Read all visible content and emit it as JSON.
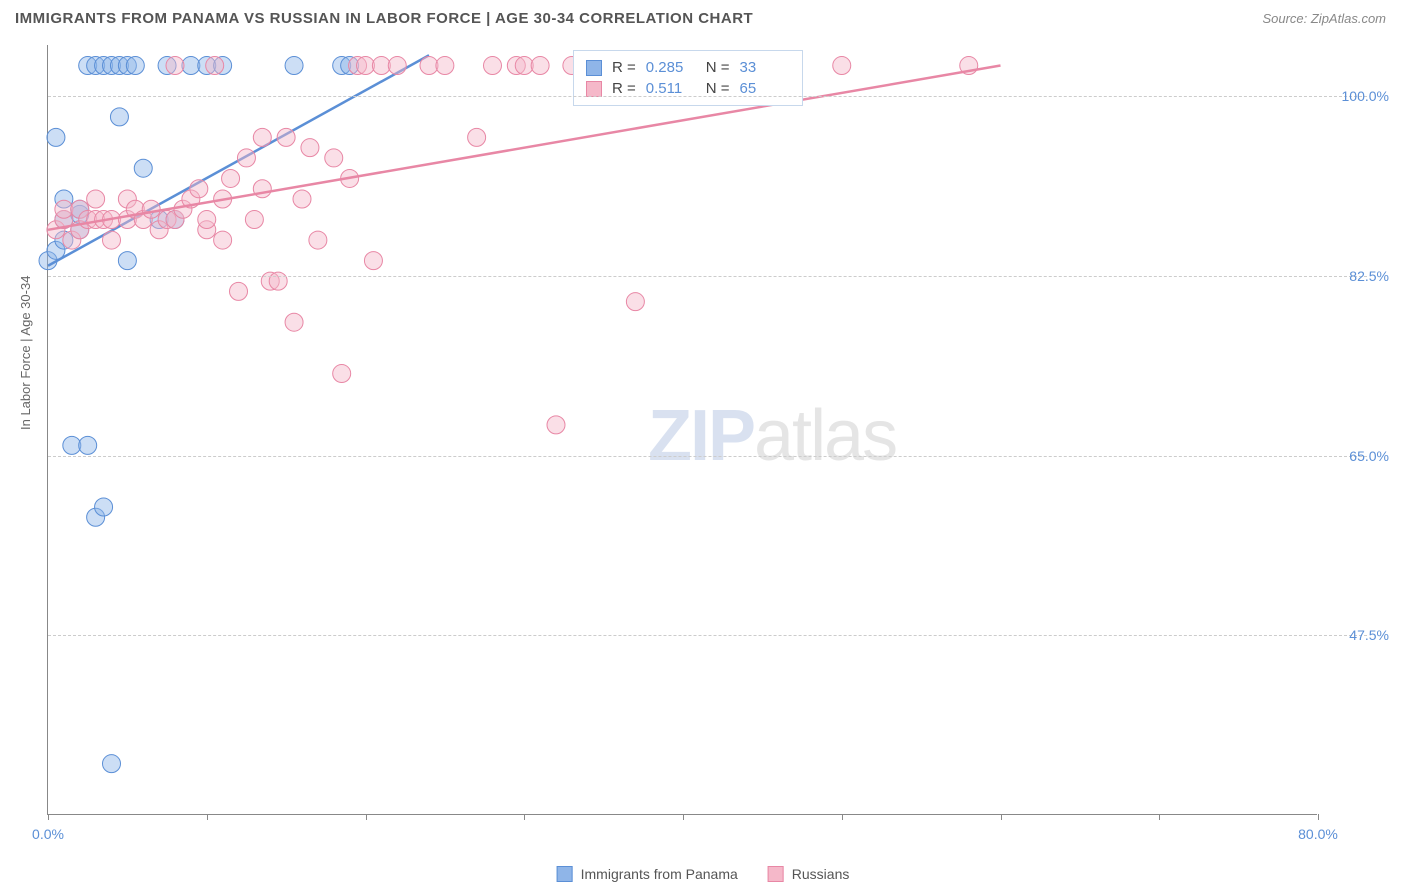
{
  "title": "IMMIGRANTS FROM PANAMA VS RUSSIAN IN LABOR FORCE | AGE 30-34 CORRELATION CHART",
  "source": "Source: ZipAtlas.com",
  "ylabel": "In Labor Force | Age 30-34",
  "watermark": {
    "zip": "ZIP",
    "atlas": "atlas"
  },
  "chart": {
    "type": "scatter",
    "xlim": [
      0,
      80
    ],
    "ylim": [
      30,
      105
    ],
    "xticks": [
      0,
      10,
      20,
      30,
      40,
      50,
      60,
      70,
      80
    ],
    "xtick_labels": {
      "0": "0.0%",
      "80": "80.0%"
    },
    "yticks": [
      47.5,
      65.0,
      82.5,
      100.0
    ],
    "ytick_labels": [
      "47.5%",
      "65.0%",
      "82.5%",
      "100.0%"
    ],
    "grid_color": "#cccccc",
    "axis_color": "#888888",
    "background_color": "#ffffff",
    "marker_radius": 9,
    "marker_opacity": 0.45,
    "line_width": 2.5,
    "series": [
      {
        "name": "Immigrants from Panama",
        "color_fill": "#8fb5e8",
        "color_stroke": "#5b8fd6",
        "R": "0.285",
        "N": "33",
        "trendline": {
          "x1": 0,
          "y1": 83.5,
          "x2": 24,
          "y2": 104
        },
        "points": [
          [
            0,
            84
          ],
          [
            0.5,
            85
          ],
          [
            0.5,
            96
          ],
          [
            1,
            86
          ],
          [
            1,
            88
          ],
          [
            1,
            90
          ],
          [
            1.5,
            66
          ],
          [
            2,
            87
          ],
          [
            2,
            88.5
          ],
          [
            2,
            89
          ],
          [
            2.5,
            66
          ],
          [
            2.5,
            103
          ],
          [
            3,
            59
          ],
          [
            3,
            103
          ],
          [
            3.5,
            60
          ],
          [
            3.5,
            103
          ],
          [
            4,
            103
          ],
          [
            4,
            35
          ],
          [
            4.5,
            98
          ],
          [
            4.5,
            103
          ],
          [
            5,
            84
          ],
          [
            5,
            103
          ],
          [
            5.5,
            103
          ],
          [
            6,
            93
          ],
          [
            7,
            88
          ],
          [
            7.5,
            103
          ],
          [
            8,
            88
          ],
          [
            9,
            103
          ],
          [
            10,
            103
          ],
          [
            11,
            103
          ],
          [
            15.5,
            103
          ],
          [
            18.5,
            103
          ],
          [
            19,
            103
          ]
        ]
      },
      {
        "name": "Russians",
        "color_fill": "#f5b8c9",
        "color_stroke": "#e887a5",
        "R": "0.511",
        "N": "65",
        "trendline": {
          "x1": 0,
          "y1": 87,
          "x2": 60,
          "y2": 103
        },
        "points": [
          [
            0.5,
            87
          ],
          [
            1,
            88
          ],
          [
            1,
            89
          ],
          [
            1.5,
            86
          ],
          [
            2,
            87
          ],
          [
            2,
            89
          ],
          [
            2.5,
            88
          ],
          [
            3,
            88
          ],
          [
            3,
            90
          ],
          [
            3.5,
            88
          ],
          [
            4,
            86
          ],
          [
            4,
            88
          ],
          [
            5,
            88
          ],
          [
            5,
            90
          ],
          [
            5.5,
            89
          ],
          [
            6,
            88
          ],
          [
            6.5,
            89
          ],
          [
            7,
            87
          ],
          [
            7.5,
            88
          ],
          [
            8,
            88
          ],
          [
            8,
            103
          ],
          [
            8.5,
            89
          ],
          [
            9,
            90
          ],
          [
            9.5,
            91
          ],
          [
            10,
            87
          ],
          [
            10,
            88
          ],
          [
            10.5,
            103
          ],
          [
            11,
            90
          ],
          [
            11,
            86
          ],
          [
            11.5,
            92
          ],
          [
            12,
            81
          ],
          [
            12.5,
            94
          ],
          [
            13,
            88
          ],
          [
            13.5,
            91
          ],
          [
            13.5,
            96
          ],
          [
            14,
            82
          ],
          [
            14.5,
            82
          ],
          [
            15,
            96
          ],
          [
            15.5,
            78
          ],
          [
            16,
            90
          ],
          [
            16.5,
            95
          ],
          [
            17,
            86
          ],
          [
            18,
            94
          ],
          [
            18.5,
            73
          ],
          [
            19,
            92
          ],
          [
            19.5,
            103
          ],
          [
            20,
            103
          ],
          [
            20.5,
            84
          ],
          [
            21,
            103
          ],
          [
            22,
            103
          ],
          [
            24,
            103
          ],
          [
            25,
            103
          ],
          [
            27,
            96
          ],
          [
            28,
            103
          ],
          [
            29.5,
            103
          ],
          [
            30,
            103
          ],
          [
            31,
            103
          ],
          [
            32,
            68
          ],
          [
            33,
            103
          ],
          [
            34.5,
            103
          ],
          [
            35.5,
            103
          ],
          [
            37,
            80
          ],
          [
            38,
            103
          ],
          [
            50,
            103
          ],
          [
            58,
            103
          ]
        ]
      }
    ]
  },
  "legend": {
    "items": [
      {
        "label": "Immigrants from Panama",
        "fill": "#8fb5e8",
        "stroke": "#5b8fd6"
      },
      {
        "label": "Russians",
        "fill": "#f5b8c9",
        "stroke": "#e887a5"
      }
    ]
  },
  "stats_labels": {
    "R": "R =",
    "N": "N ="
  }
}
